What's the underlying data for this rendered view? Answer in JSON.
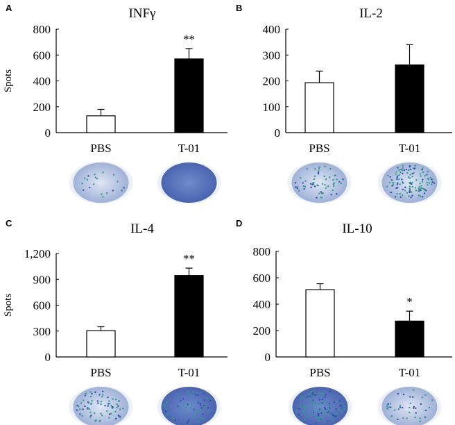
{
  "chart_data": [
    {
      "panel": "A",
      "type": "bar",
      "title": "INFγ",
      "ylabel": "Spots",
      "categories": [
        "PBS",
        "T-01"
      ],
      "values": [
        130,
        570
      ],
      "errors": [
        50,
        80
      ],
      "ylim": [
        0,
        800
      ],
      "yticks": [
        "0",
        "200",
        "400",
        "600",
        "800"
      ],
      "tick_values": [
        0,
        200,
        400,
        600,
        800
      ],
      "significance": [
        "",
        "**"
      ],
      "fills": [
        "#ffffff",
        "#000000"
      ]
    },
    {
      "panel": "B",
      "type": "bar",
      "title": "IL-2",
      "ylabel": "",
      "categories": [
        "PBS",
        "T-01"
      ],
      "values": [
        193,
        262
      ],
      "errors": [
        45,
        78
      ],
      "ylim": [
        0,
        400
      ],
      "yticks": [
        "0",
        "100",
        "200",
        "300",
        "400"
      ],
      "tick_values": [
        0,
        100,
        200,
        300,
        400
      ],
      "significance": [
        "",
        ""
      ],
      "fills": [
        "#ffffff",
        "#000000"
      ]
    },
    {
      "panel": "C",
      "type": "bar",
      "title": "IL-4",
      "ylabel": "Spots",
      "categories": [
        "PBS",
        "T-01"
      ],
      "values": [
        305,
        945
      ],
      "errors": [
        45,
        85
      ],
      "ylim": [
        0,
        1200
      ],
      "yticks": [
        "0",
        "300",
        "600",
        "900",
        "1,200"
      ],
      "tick_values": [
        0,
        300,
        600,
        900,
        1200
      ],
      "significance": [
        "",
        "**"
      ],
      "fills": [
        "#ffffff",
        "#000000"
      ]
    },
    {
      "panel": "D",
      "type": "bar",
      "title": "IL-10",
      "ylabel": "",
      "categories": [
        "PBS",
        "T-01"
      ],
      "values": [
        510,
        272
      ],
      "errors": [
        45,
        75
      ],
      "ylim": [
        0,
        800
      ],
      "yticks": [
        "0",
        "200",
        "400",
        "600",
        "800"
      ],
      "tick_values": [
        0,
        200,
        400,
        600,
        800
      ],
      "significance": [
        "",
        "*"
      ],
      "fills": [
        "#ffffff",
        "#000000"
      ]
    }
  ]
}
